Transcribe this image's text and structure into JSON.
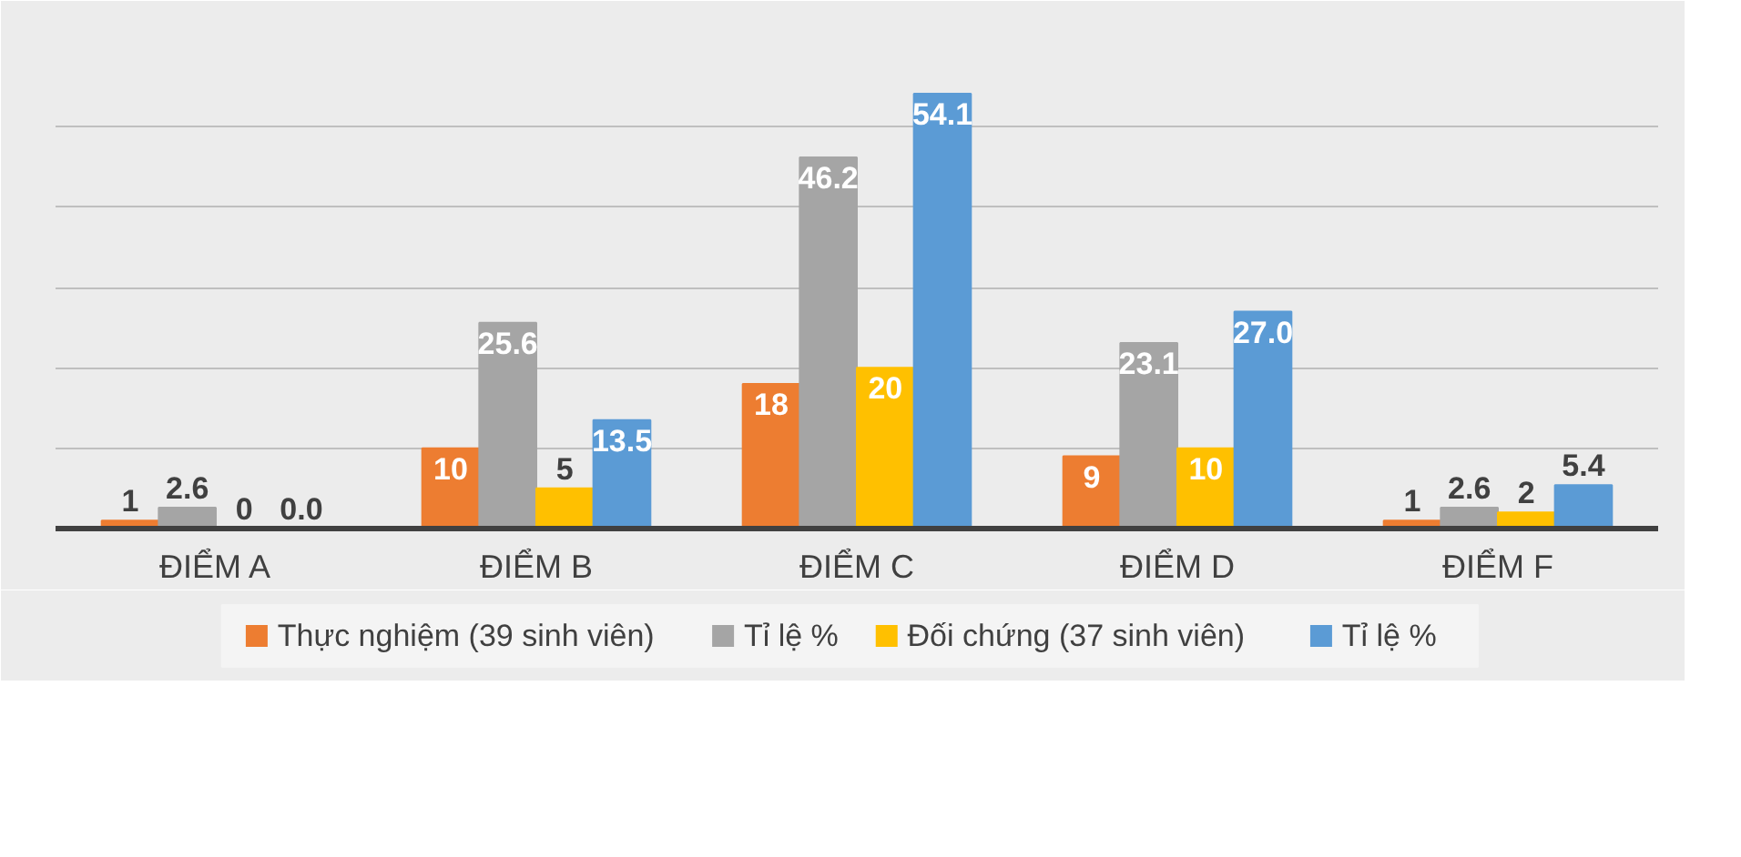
{
  "chart_data": {
    "type": "bar",
    "categories": [
      "ĐIỂM A",
      "ĐIỂM B",
      "ĐIỂM C",
      "ĐIỂM D",
      "ĐIỂM F"
    ],
    "series": [
      {
        "name": "Thực nghiệm (39 sinh viên)",
        "color": "#ed7d31",
        "values": [
          1,
          10,
          18,
          9,
          1
        ],
        "value_labels": [
          "1",
          "10",
          "18",
          "9",
          "1"
        ]
      },
      {
        "name": "Tỉ lệ %",
        "color": "#a5a5a5",
        "values": [
          2.6,
          25.6,
          46.2,
          23.1,
          2.6
        ],
        "value_labels": [
          "2.6",
          "25.6",
          "46.2",
          "23.1",
          "2.6"
        ]
      },
      {
        "name": "Đối chứng (37 sinh viên)",
        "color": "#ffc000",
        "values": [
          0,
          5,
          20,
          10,
          2
        ],
        "value_labels": [
          "0",
          "5",
          "20",
          "10",
          "2"
        ]
      },
      {
        "name": "Tỉ lệ %",
        "color": "#5b9bd5",
        "values": [
          0.0,
          13.5,
          54.1,
          27.0,
          5.4
        ],
        "value_labels": [
          "0.0",
          "13.5",
          "54.1",
          "27.0",
          "5.4"
        ]
      }
    ],
    "ylim": [
      0,
      60
    ],
    "yticks": [
      {
        "value": 0,
        "label": null
      },
      {
        "value": 10,
        "label": null
      },
      {
        "value": 20,
        "label": null
      },
      {
        "value": 30,
        "label": null
      },
      {
        "value": 40,
        "label": null
      },
      {
        "value": 50,
        "label": null
      },
      {
        "value": 60,
        "label": null
      }
    ],
    "tick_labels": "x",
    "grid": "y",
    "legend": "bottom"
  }
}
